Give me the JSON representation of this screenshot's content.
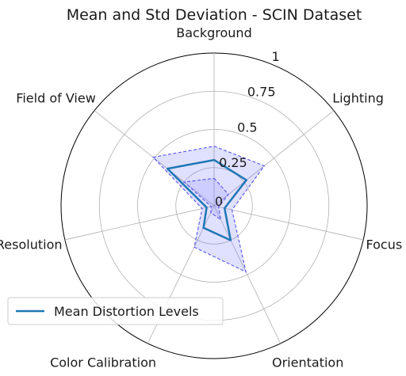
{
  "chart_data": {
    "type": "radar",
    "title": "Mean and Std Deviation - SCIN Dataset",
    "axes": [
      "Background",
      "Lighting",
      "Focus",
      "Orientation",
      "Color Calibration",
      "Resolution",
      "Field of View"
    ],
    "rlim": [
      0,
      1
    ],
    "r_ticks": [
      0,
      0.25,
      0.5,
      0.75,
      1
    ],
    "r_tick_labels": [
      "0",
      "0.25",
      "0.5",
      "0.75",
      "1"
    ],
    "grid": true,
    "series": [
      {
        "name": "Mean Distortion Levels",
        "color": "#1f77b4",
        "values": [
          0.3,
          0.27,
          0.07,
          0.25,
          0.16,
          0.05,
          0.39
        ]
      }
    ],
    "band": {
      "upper": [
        0.39,
        0.42,
        0.12,
        0.48,
        0.3,
        0.08,
        0.51
      ],
      "lower": [
        0.18,
        0.12,
        0.03,
        0.1,
        0.05,
        0.02,
        0.25
      ],
      "fill_color": "#6666ff",
      "edge_color": "#5555ee"
    },
    "legend": {
      "placement": "lower-left",
      "entries": [
        "Mean Distortion Levels"
      ]
    }
  }
}
